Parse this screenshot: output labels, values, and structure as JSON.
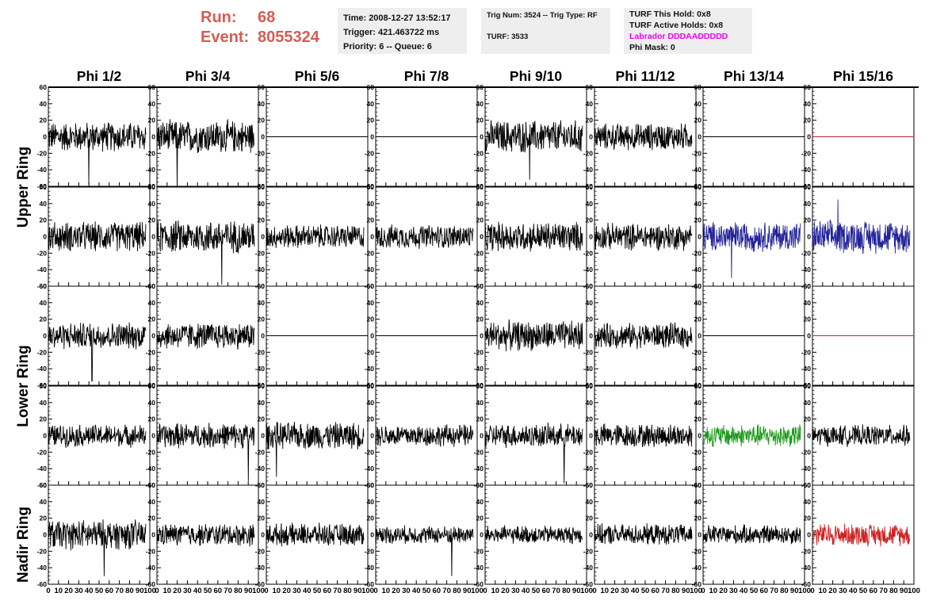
{
  "header": {
    "run_label": "Run:",
    "run_value": "68",
    "event_label": "Event:",
    "event_value": "8055324",
    "time_line": "Time: 2008-12-27 13:52:17",
    "trigger_line": "Trigger: 421.463722 ms",
    "priority_line": "Priority: 6 -- Queue: 6",
    "trig_line": "Trig Num: 3524 -- Trig Type: RF",
    "turf_line": "TURF: 3533",
    "hold_line": "TURF This Hold: 0x8",
    "active_line": "TURF Active Holds: 0x8",
    "labrador_line": "Labrador DDDAADDDDD",
    "labrador_color": "#ee00ee",
    "phimask_line": "Phi Mask: 0",
    "run_color": "#d45c55"
  },
  "chart_data": {
    "type": "line",
    "columns": [
      "Phi 1/2",
      "Phi 3/4",
      "Phi 5/6",
      "Phi 7/8",
      "Phi 9/10",
      "Phi 11/12",
      "Phi 13/14",
      "Phi 15/16"
    ],
    "ring_labels": [
      "Upper Ring",
      "Lower Ring",
      "Nadir Ring"
    ],
    "ylim": [
      -60,
      60
    ],
    "xlim": [
      0,
      100
    ],
    "yticks": [
      -60,
      -40,
      -20,
      0,
      20,
      40,
      60
    ],
    "xticks": [
      0,
      10,
      20,
      30,
      40,
      50,
      60,
      70,
      80,
      90,
      100
    ],
    "x_tick_labels": [
      "0",
      "10",
      "20",
      "30",
      "40",
      "50",
      "60",
      "70",
      "80",
      "90",
      "100"
    ],
    "y_tick_labels": [
      "-60",
      "-40",
      "-20",
      "0",
      "20",
      "40",
      "60"
    ],
    "trace_x_range": [
      0,
      96
    ],
    "row_amplitudes": [
      [
        20,
        22,
        0,
        0,
        22,
        18,
        0,
        0
      ],
      [
        20,
        22,
        16,
        16,
        20,
        18,
        20,
        22
      ],
      [
        18,
        18,
        0,
        0,
        20,
        17,
        0,
        0
      ],
      [
        15,
        17,
        18,
        15,
        16,
        16,
        15,
        14
      ],
      [
        20,
        15,
        15,
        12,
        12,
        14,
        13,
        15
      ]
    ],
    "row_colors": [
      [
        "#000000",
        "#000000",
        "#000000",
        "#000000",
        "#000000",
        "#000000",
        "#000000",
        "#cc2222"
      ],
      [
        "#000000",
        "#000000",
        "#000000",
        "#000000",
        "#000000",
        "#000000",
        "#22229a",
        "#22229a"
      ],
      [
        "#000000",
        "#000000",
        "#000000",
        "#000000",
        "#000000",
        "#000000",
        "#000000",
        "#cc2222"
      ],
      [
        "#000000",
        "#000000",
        "#000000",
        "#000000",
        "#000000",
        "#000000",
        "#1a9a1a",
        "#000000"
      ],
      [
        "#000000",
        "#000000",
        "#000000",
        "#000000",
        "#000000",
        "#000000",
        "#000000",
        "#cc2222"
      ]
    ],
    "spikes": [
      {
        "row": 0,
        "col": 0,
        "x": 40,
        "y": -58
      },
      {
        "row": 0,
        "col": 1,
        "x": 20,
        "y": -58
      },
      {
        "row": 0,
        "col": 4,
        "x": 44,
        "y": -52
      },
      {
        "row": 1,
        "col": 1,
        "x": 64,
        "y": -58
      },
      {
        "row": 1,
        "col": 7,
        "x": 25,
        "y": 45
      },
      {
        "row": 1,
        "col": 6,
        "x": 28,
        "y": -50
      },
      {
        "row": 2,
        "col": 0,
        "x": 43,
        "y": -55
      },
      {
        "row": 3,
        "col": 4,
        "x": 78,
        "y": -58
      },
      {
        "row": 3,
        "col": 2,
        "x": 10,
        "y": -50
      },
      {
        "row": 3,
        "col": 1,
        "x": 90,
        "y": -55
      },
      {
        "row": 4,
        "col": 0,
        "x": 55,
        "y": -50
      },
      {
        "row": 4,
        "col": 3,
        "x": 75,
        "y": -50
      }
    ]
  }
}
